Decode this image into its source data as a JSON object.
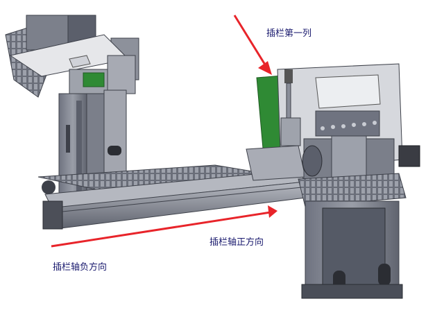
{
  "annotations": {
    "first_column": "插栏第一列",
    "positive_direction": "插栏轴正方向",
    "negative_direction": "插栏轴负方向"
  },
  "colors": {
    "arrow": "#e8242a",
    "label_text": "#1a1a6e",
    "frame_dark": "#5b5f6b",
    "frame_mid": "#8a8e99",
    "frame_light": "#c9ccd3",
    "pcb_green": "#2f8a34",
    "plate_light": "#e6e7ea"
  }
}
